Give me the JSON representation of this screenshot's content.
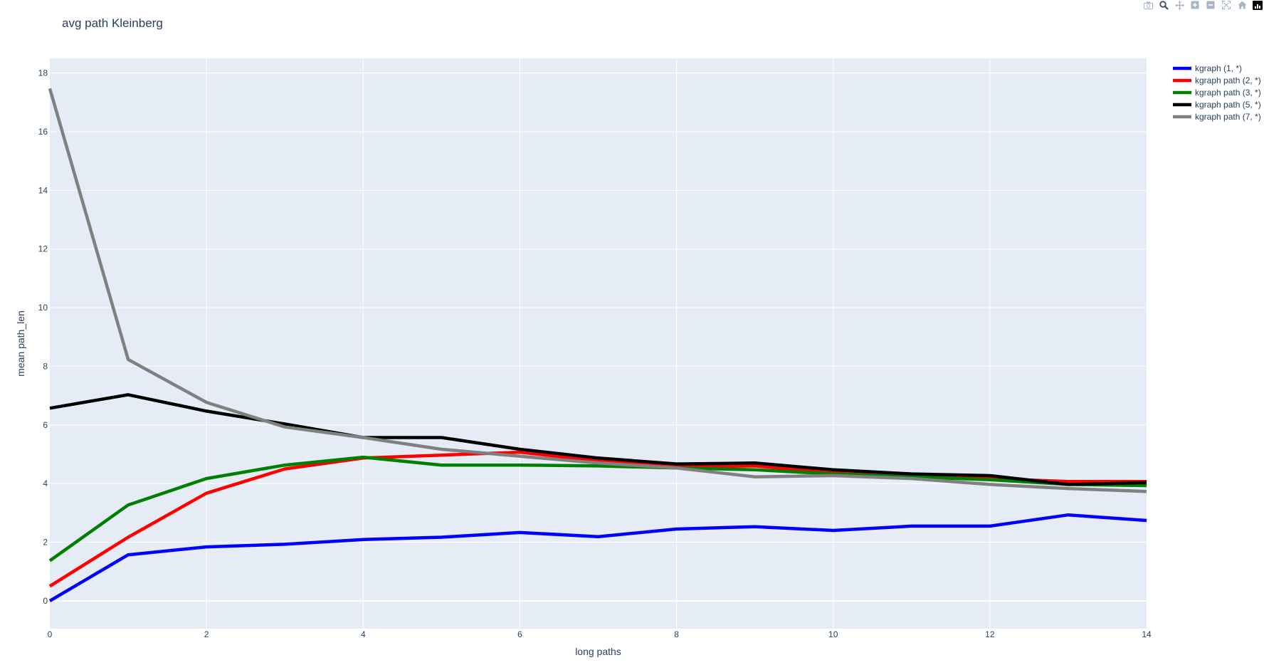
{
  "modebar": {
    "buttons": [
      {
        "name": "camera-icon",
        "title": "Download plot as a png"
      },
      {
        "name": "zoom-icon",
        "title": "Zoom"
      },
      {
        "name": "pan-icon",
        "title": "Pan"
      },
      {
        "name": "zoom-in-icon",
        "title": "Zoom in"
      },
      {
        "name": "zoom-out-icon",
        "title": "Zoom out"
      },
      {
        "name": "autoscale-icon",
        "title": "Autoscale"
      },
      {
        "name": "home-icon",
        "title": "Reset axes"
      }
    ],
    "logo_icon": "plotly-logo-icon"
  },
  "chart_data": {
    "type": "line",
    "title": "avg path Kleinberg",
    "xlabel": "long paths",
    "ylabel": "mean path_len",
    "xlim": [
      0,
      14
    ],
    "ylim": [
      -0.95,
      18.5
    ],
    "xticks": [
      0,
      2,
      4,
      6,
      8,
      10,
      12,
      14
    ],
    "yticks": [
      0,
      2,
      4,
      6,
      8,
      10,
      12,
      14,
      16,
      18
    ],
    "grid": true,
    "legend_position": "top-right, outside plot area",
    "plot_background": "#e5ecf6",
    "x": [
      0,
      1,
      2,
      3,
      4,
      5,
      6,
      7,
      8,
      9,
      10,
      11,
      12,
      13,
      14
    ],
    "series": [
      {
        "name": "kgraph (1, *)",
        "color": "#0000ff",
        "values": [
          0.0,
          1.57,
          1.84,
          1.93,
          2.09,
          2.17,
          2.33,
          2.19,
          2.45,
          2.53,
          2.4,
          2.55,
          2.55,
          2.93,
          2.74
        ]
      },
      {
        "name": "kgraph path (2, *)",
        "color": "#ff0000",
        "values": [
          0.5,
          2.17,
          3.67,
          4.5,
          4.87,
          4.97,
          5.07,
          4.77,
          4.57,
          4.6,
          4.37,
          4.23,
          4.17,
          4.07,
          4.07
        ]
      },
      {
        "name": "kgraph path (3, *)",
        "color": "#008000",
        "values": [
          1.37,
          3.27,
          4.17,
          4.63,
          4.9,
          4.63,
          4.63,
          4.6,
          4.53,
          4.47,
          4.33,
          4.23,
          4.13,
          3.97,
          3.93
        ]
      },
      {
        "name": "kgraph path (5, *)",
        "color": "#000000",
        "values": [
          6.57,
          7.03,
          6.47,
          6.03,
          5.57,
          5.57,
          5.17,
          4.87,
          4.67,
          4.7,
          4.47,
          4.33,
          4.27,
          3.97,
          4.03
        ]
      },
      {
        "name": "kgraph path (7, *)",
        "color": "#808080",
        "values": [
          17.47,
          8.23,
          6.77,
          5.93,
          5.57,
          5.17,
          4.93,
          4.7,
          4.53,
          4.23,
          4.27,
          4.17,
          3.97,
          3.83,
          3.73
        ]
      }
    ]
  }
}
